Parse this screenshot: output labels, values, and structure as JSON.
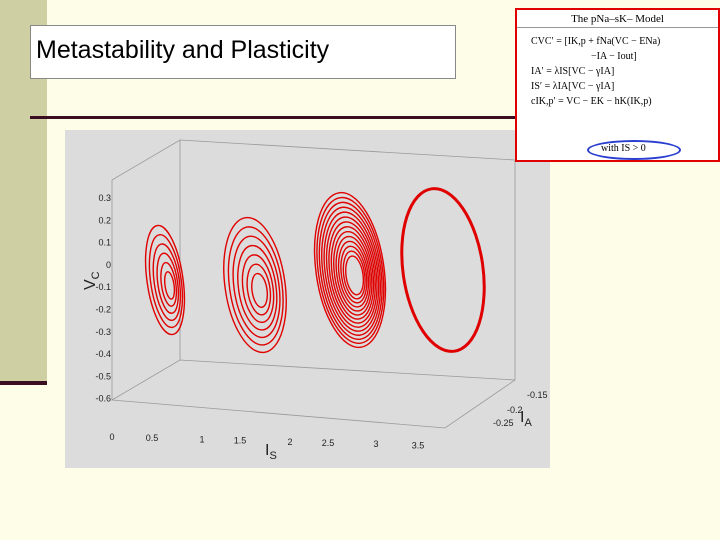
{
  "slide": {
    "title": "Metastability and Plasticity"
  },
  "figure": {
    "z_label": {
      "main": "V",
      "sub": "C"
    },
    "x_label": {
      "main": "I",
      "sub": "S"
    },
    "y_label": {
      "main": "I",
      "sub": "A"
    },
    "z_ticks": [
      "0.3",
      "0.2",
      "0.1",
      "0",
      "-0.1",
      "-0.2",
      "-0.3",
      "-0.4",
      "-0.5",
      "-0.6"
    ],
    "x_ticks": [
      "0",
      "0.5",
      "1",
      "1.5",
      "2",
      "2.5",
      "3",
      "3.5"
    ],
    "y_ticks": [
      "-0.15",
      "-0.2",
      "-0.25"
    ]
  },
  "inset": {
    "title": "The pNa–sK– Model",
    "equations": [
      "CVC′ = [IK,p + fNa(VC − ENa)",
      "−IA − Iout]",
      "IA′ = λIS[VC − γIA]",
      "IS′ = λIA[VC − γIA]",
      "cIK,p′ = VC − EK − hK(IK,p)"
    ],
    "note": "with IS > 0"
  }
}
